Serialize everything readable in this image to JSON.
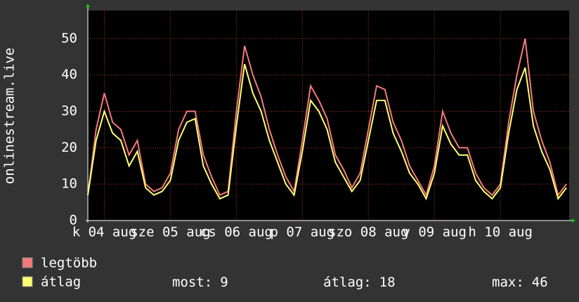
{
  "chart_data": {
    "type": "line",
    "ylabel": "onlinestream.live",
    "x": [
      0,
      3,
      6,
      9,
      12,
      15,
      18,
      21,
      24,
      27,
      30,
      33,
      36,
      39,
      42,
      45,
      48,
      51,
      54,
      57,
      60,
      63,
      66,
      69,
      72,
      75,
      78,
      81,
      84,
      87,
      90,
      93,
      96,
      99,
      102,
      105,
      108,
      111,
      114,
      117,
      120,
      123,
      126,
      129,
      132,
      135,
      138,
      141,
      144,
      147,
      150,
      153,
      156,
      159,
      162,
      165,
      168,
      171,
      174
    ],
    "series": [
      {
        "name": "legtöbb",
        "color": "#f47a7a",
        "values": [
          7,
          25,
          35,
          27,
          25,
          18,
          22,
          10,
          8,
          9,
          13,
          25,
          30,
          30,
          18,
          12,
          7,
          8,
          30,
          48,
          40,
          34,
          25,
          18,
          12,
          8,
          22,
          37,
          33,
          28,
          18,
          14,
          9,
          13,
          25,
          37,
          36,
          27,
          22,
          15,
          11,
          7,
          15,
          30,
          24,
          20,
          20,
          13,
          9,
          7,
          10,
          27,
          40,
          50,
          30,
          22,
          16,
          7,
          10
        ]
      },
      {
        "name": "átlag",
        "color": "#ffff70",
        "values": [
          7,
          22,
          30,
          24,
          22,
          15,
          19,
          9,
          7,
          8,
          11,
          22,
          27,
          28,
          15,
          10,
          6,
          7,
          26,
          43,
          35,
          30,
          22,
          16,
          10,
          7,
          19,
          33,
          30,
          25,
          16,
          12,
          8,
          11,
          22,
          33,
          33,
          24,
          19,
          13,
          10,
          6,
          13,
          26,
          21,
          18,
          18,
          11,
          8,
          6,
          9,
          24,
          36,
          42,
          26,
          19,
          14,
          6,
          9
        ]
      }
    ],
    "xlim": [
      0,
      175
    ],
    "xticks": [
      {
        "value": 6,
        "label": "k 04 aug"
      },
      {
        "value": 30,
        "label": "sze 05 aug"
      },
      {
        "value": 54,
        "label": "cs 06 aug"
      },
      {
        "value": 78,
        "label": "p 07 aug"
      },
      {
        "value": 102,
        "label": "szo 08 aug"
      },
      {
        "value": 126,
        "label": "v 09 aug"
      },
      {
        "value": 150,
        "label": "h 10 aug"
      }
    ],
    "ylim": [
      0,
      57.7
    ],
    "yticks": [
      0,
      10,
      20,
      30,
      40,
      50
    ],
    "grid": true,
    "stats": [
      {
        "label": "most:",
        "value": 9
      },
      {
        "label": "átlag:",
        "value": 18
      },
      {
        "label": "max:",
        "value": 46
      }
    ]
  }
}
